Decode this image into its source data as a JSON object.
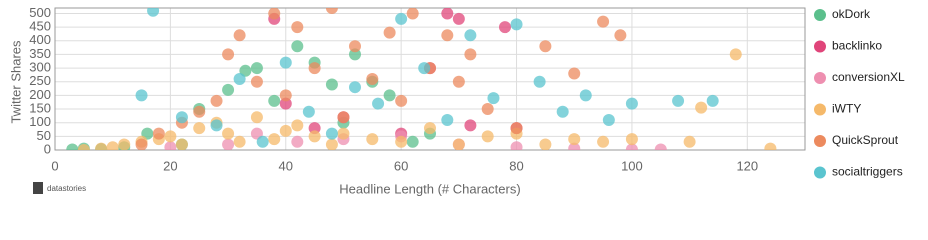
{
  "chart_data": {
    "type": "scatter",
    "x_label": "Headline Length (# Characters)",
    "y_label": "Twitter Shares",
    "source": "datastories",
    "xlim": [
      0,
      130
    ],
    "xticks": [
      0,
      20,
      40,
      60,
      80,
      100,
      120
    ],
    "ylim": [
      0,
      520
    ],
    "yticks": [
      0,
      50,
      100,
      150,
      200,
      250,
      300,
      350,
      400,
      450,
      500
    ],
    "grid": true,
    "legend": "right",
    "series": [
      {
        "name": "okDork",
        "color": "#5bbf8c",
        "x": [
          3,
          5,
          8,
          12,
          16,
          22,
          25,
          30,
          33,
          35,
          38,
          42,
          45,
          48,
          50,
          52,
          55,
          58,
          62,
          65
        ],
        "values": [
          2,
          5,
          3,
          10,
          60,
          20,
          150,
          220,
          290,
          300,
          180,
          380,
          320,
          240,
          100,
          350,
          250,
          200,
          30,
          60
        ]
      },
      {
        "name": "backlinko",
        "color": "#e0457a",
        "x": [
          38,
          40,
          45,
          50,
          60,
          65,
          68,
          70,
          72,
          78,
          80
        ],
        "values": [
          480,
          170,
          80,
          120,
          60,
          300,
          500,
          480,
          90,
          450,
          80
        ]
      },
      {
        "name": "conversionXL",
        "color": "#ee8fb0",
        "x": [
          20,
          30,
          35,
          42,
          50,
          60,
          70,
          80,
          90,
          100,
          105
        ],
        "values": [
          10,
          20,
          60,
          30,
          40,
          50,
          20,
          10,
          5,
          2,
          2
        ]
      },
      {
        "name": "iWTY",
        "color": "#f5b96a",
        "x": [
          5,
          8,
          10,
          12,
          15,
          18,
          20,
          22,
          25,
          28,
          30,
          32,
          35,
          38,
          40,
          42,
          45,
          48,
          50,
          55,
          60,
          65,
          70,
          75,
          80,
          85,
          90,
          95,
          100,
          110,
          112,
          118,
          124
        ],
        "values": [
          0,
          5,
          10,
          20,
          30,
          40,
          50,
          20,
          80,
          100,
          60,
          30,
          120,
          40,
          70,
          90,
          50,
          20,
          60,
          40,
          30,
          80,
          20,
          50,
          60,
          20,
          40,
          30,
          40,
          30,
          155,
          350,
          5
        ]
      },
      {
        "name": "QuickSprout",
        "color": "#ec8a5e",
        "x": [
          15,
          18,
          22,
          25,
          28,
          30,
          32,
          35,
          38,
          40,
          42,
          45,
          48,
          50,
          52,
          55,
          58,
          60,
          62,
          65,
          68,
          70,
          72,
          75,
          80,
          85,
          90,
          95,
          98
        ],
        "values": [
          20,
          60,
          100,
          140,
          180,
          350,
          420,
          250,
          500,
          200,
          450,
          300,
          520,
          120,
          380,
          260,
          430,
          180,
          500,
          300,
          420,
          250,
          350,
          150,
          80,
          380,
          280,
          470,
          420
        ]
      },
      {
        "name": "socialtriggers",
        "color": "#5ac4cf",
        "x": [
          15,
          17,
          22,
          28,
          32,
          36,
          40,
          44,
          48,
          52,
          56,
          60,
          64,
          68,
          72,
          76,
          80,
          84,
          88,
          92,
          96,
          100,
          108,
          114
        ],
        "values": [
          200,
          510,
          120,
          90,
          260,
          30,
          320,
          140,
          60,
          230,
          170,
          480,
          300,
          110,
          420,
          190,
          460,
          250,
          140,
          200,
          110,
          170,
          180,
          180
        ]
      }
    ]
  }
}
